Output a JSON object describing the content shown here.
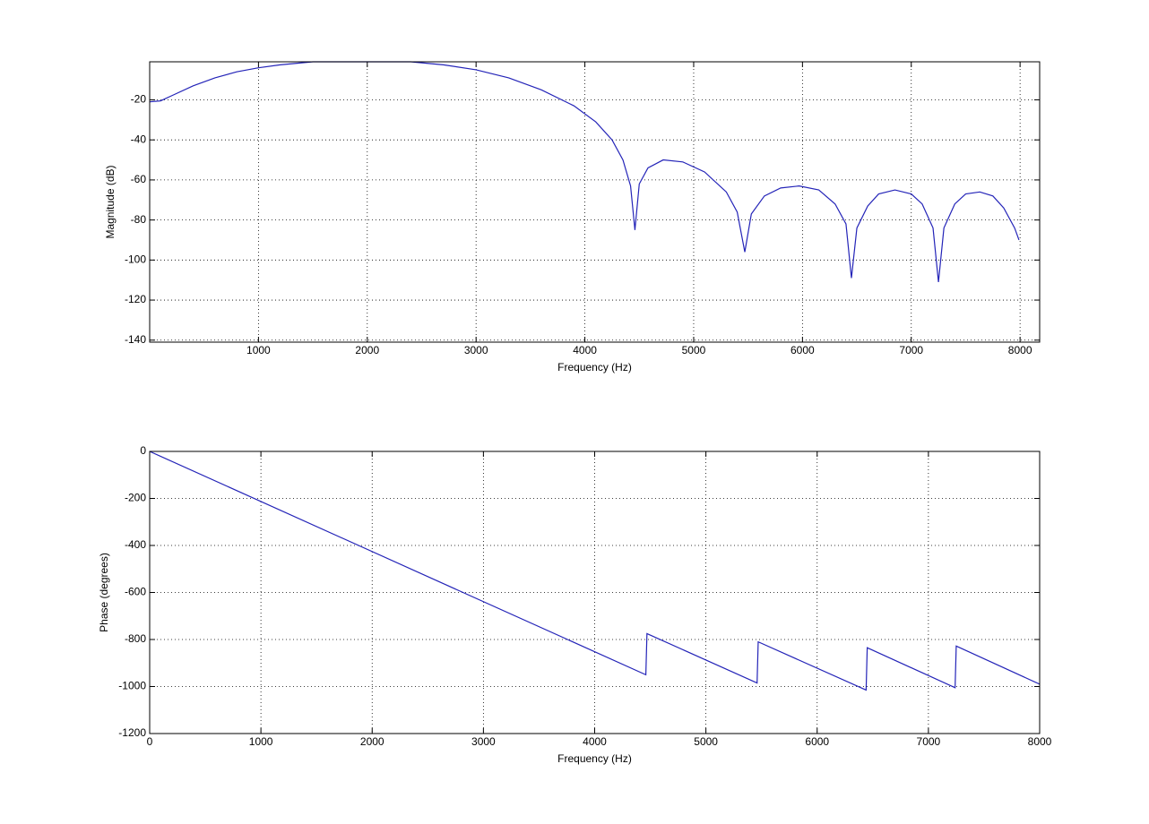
{
  "chart_data": [
    {
      "type": "line",
      "xlabel": "Frequency (Hz)",
      "ylabel": "Magnitude (dB)",
      "color": "#2424b8",
      "grid": true,
      "xlim": [
        0,
        8180
      ],
      "ylim": [
        -141,
        -1
      ],
      "xticks": [
        1000,
        2000,
        3000,
        4000,
        5000,
        6000,
        7000,
        8000
      ],
      "yticks": [
        -140,
        -120,
        -100,
        -80,
        -60,
        -40,
        -20
      ],
      "x": [
        0,
        100,
        200,
        400,
        600,
        800,
        1000,
        1200,
        1500,
        2000,
        2400,
        2700,
        3000,
        3300,
        3600,
        3900,
        4100,
        4250,
        4350,
        4420,
        4460,
        4500,
        4580,
        4720,
        4900,
        5100,
        5300,
        5400,
        5470,
        5530,
        5650,
        5800,
        5970,
        6150,
        6300,
        6400,
        6450,
        6500,
        6600,
        6700,
        6850,
        7000,
        7100,
        7200,
        7250,
        7300,
        7400,
        7500,
        7630,
        7750,
        7850,
        7950,
        7990
      ],
      "values": [
        -21,
        -20.5,
        -18,
        -13,
        -9,
        -6,
        -4,
        -2.5,
        -1,
        -1,
        -1,
        -2.5,
        -5,
        -9,
        -15,
        -23,
        -31,
        -40,
        -50,
        -63,
        -85,
        -62,
        -54,
        -50,
        -51,
        -56,
        -66,
        -76,
        -96,
        -77,
        -68,
        -64,
        -63,
        -65,
        -72,
        -82,
        -109,
        -84,
        -73,
        -67,
        -65,
        -67,
        -72,
        -84,
        -111,
        -84,
        -72,
        -67,
        -66,
        -68,
        -74,
        -84,
        -90
      ]
    },
    {
      "type": "line",
      "xlabel": "Frequency (Hz)",
      "ylabel": "Phase (degrees)",
      "color": "#2424b8",
      "grid": true,
      "xlim": [
        0,
        8000
      ],
      "ylim": [
        -1200,
        0
      ],
      "xticks": [
        0,
        1000,
        2000,
        3000,
        4000,
        5000,
        6000,
        7000,
        8000
      ],
      "yticks": [
        -1200,
        -1000,
        -800,
        -600,
        -400,
        -200,
        0
      ],
      "x": [
        0,
        4460,
        4470,
        5460,
        5470,
        6440,
        6450,
        7240,
        7250,
        8000
      ],
      "values": [
        0,
        -950,
        -775,
        -985,
        -810,
        -1015,
        -835,
        -1005,
        -828,
        -990
      ]
    }
  ]
}
